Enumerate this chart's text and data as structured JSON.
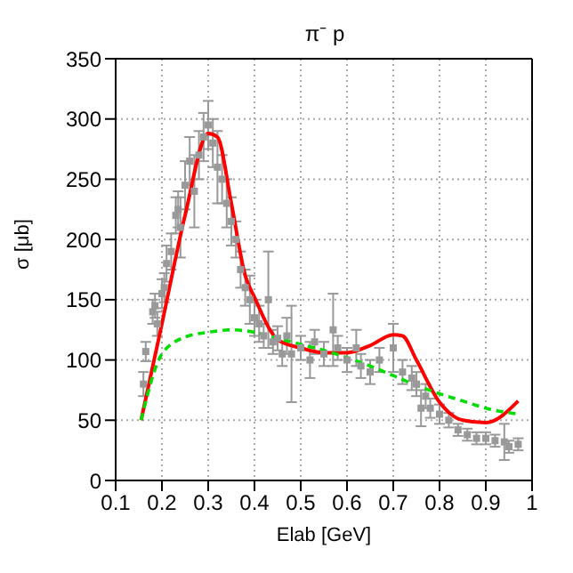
{
  "chart_data": {
    "type": "scatter",
    "title": "π⁻ p",
    "xlabel": "Elab [GeV]",
    "ylabel": "σ [μb]",
    "xlim": [
      0.1,
      1
    ],
    "xticks": [
      0.1,
      0.2,
      0.3,
      0.4,
      0.5,
      0.6,
      0.7,
      0.8,
      0.9,
      1
    ],
    "ylim": [
      0,
      350
    ],
    "yticks": [
      0,
      50,
      100,
      150,
      200,
      250,
      300,
      350
    ],
    "grid": true,
    "legend": false,
    "series": [
      {
        "color": "#999999",
        "marker": "square",
        "x": [
          0.16,
          0.165,
          0.18,
          0.185,
          0.19,
          0.2,
          0.205,
          0.21,
          0.22,
          0.23,
          0.235,
          0.24,
          0.25,
          0.26,
          0.27,
          0.28,
          0.29,
          0.3,
          0.31,
          0.32,
          0.33,
          0.34,
          0.35,
          0.36,
          0.37,
          0.38,
          0.39,
          0.4,
          0.41,
          0.42,
          0.43,
          0.44,
          0.45,
          0.46,
          0.47,
          0.48,
          0.5,
          0.52,
          0.53,
          0.55,
          0.57,
          0.58,
          0.6,
          0.62,
          0.63,
          0.65,
          0.67,
          0.7,
          0.72,
          0.74,
          0.75,
          0.76,
          0.77,
          0.78,
          0.8,
          0.82,
          0.84,
          0.86,
          0.88,
          0.9,
          0.92,
          0.94,
          0.95,
          0.97
        ],
        "values": [
          80,
          107,
          140,
          145,
          130,
          155,
          160,
          180,
          190,
          220,
          225,
          210,
          245,
          265,
          240,
          270,
          285,
          295,
          280,
          260,
          250,
          230,
          215,
          200,
          175,
          160,
          150,
          135,
          130,
          120,
          150,
          115,
          118,
          105,
          120,
          105,
          110,
          100,
          115,
          105,
          125,
          110,
          100,
          110,
          95,
          90,
          100,
          110,
          90,
          85,
          80,
          60,
          70,
          60,
          55,
          50,
          42,
          38,
          35,
          35,
          33,
          32,
          28,
          30
        ],
        "errors": [
          10,
          8,
          10,
          10,
          10,
          12,
          12,
          15,
          15,
          15,
          15,
          25,
          20,
          20,
          30,
          20,
          20,
          20,
          20,
          30,
          20,
          20,
          20,
          15,
          15,
          15,
          20,
          15,
          15,
          10,
          40,
          10,
          10,
          10,
          15,
          40,
          10,
          15,
          10,
          10,
          30,
          10,
          10,
          15,
          10,
          10,
          10,
          20,
          10,
          10,
          10,
          15,
          10,
          8,
          8,
          6,
          5,
          5,
          5,
          5,
          5,
          15,
          5,
          5
        ]
      },
      {
        "type": "line",
        "color": "#ff0000",
        "marker": "none",
        "line_style": "solid",
        "x": [
          0.155,
          0.2,
          0.25,
          0.3,
          0.32,
          0.35,
          0.38,
          0.4,
          0.45,
          0.5,
          0.55,
          0.6,
          0.65,
          0.7,
          0.72,
          0.75,
          0.8,
          0.85,
          0.9,
          0.97
        ],
        "values": [
          50,
          130,
          220,
          288,
          285,
          230,
          170,
          152,
          117,
          110,
          106,
          106,
          112,
          121,
          120,
          100,
          65,
          50,
          48,
          66
        ]
      },
      {
        "type": "line",
        "color": "#00dd00",
        "marker": "none",
        "line_style": "dashed",
        "x": [
          0.155,
          0.2,
          0.25,
          0.3,
          0.35,
          0.4,
          0.45,
          0.5,
          0.55,
          0.6,
          0.65,
          0.7,
          0.75,
          0.8,
          0.85,
          0.9,
          0.97
        ],
        "values": [
          50,
          105,
          119,
          123,
          125,
          123,
          118,
          113,
          108,
          102,
          95,
          87,
          79,
          72,
          66,
          60,
          55
        ]
      }
    ]
  }
}
